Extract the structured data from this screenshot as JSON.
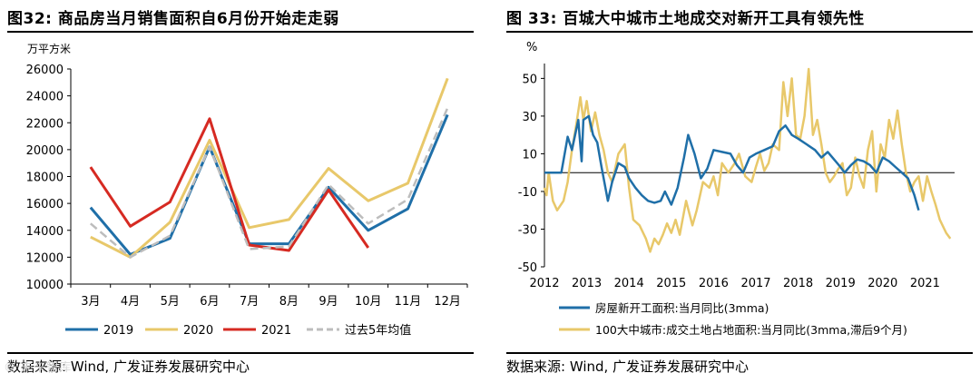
{
  "left": {
    "title": "图32:  商品房当月销售面积自6月份开始走走弱",
    "source": "数据来源: Wind, 广发证券发展研究中心"
  },
  "right": {
    "title": "图 33:  百城大中城市土地成交对新开工具有领先性",
    "source": "数据来源: Wind, 广发证券发展研究中心"
  },
  "watermark": "© 未来智库",
  "colors": {
    "blue": "#1f6fa8",
    "gold": "#e8c86a",
    "red": "#d62a22",
    "grey": "#bdbdbd",
    "axis": "#000000"
  },
  "chart_data": [
    {
      "type": "line",
      "ylabel": "万平方米",
      "ylim": [
        10000,
        26000
      ],
      "yticks": [
        10000,
        12000,
        14000,
        16000,
        18000,
        20000,
        22000,
        24000,
        26000
      ],
      "yticklabels": [
        "10000",
        "12000",
        "14000",
        "16000",
        "18000",
        "20000",
        "22000",
        "24000",
        "26000"
      ],
      "categories": [
        "3月",
        "4月",
        "5月",
        "6月",
        "7月",
        "8月",
        "9月",
        "10月",
        "11月",
        "12月"
      ],
      "series": [
        {
          "name": "2019",
          "color": "blue",
          "dash": false,
          "values": [
            15700,
            12200,
            13400,
            20200,
            13000,
            13000,
            17200,
            14000,
            15600,
            22600
          ]
        },
        {
          "name": "2020",
          "color": "gold",
          "dash": false,
          "values": [
            13500,
            12000,
            14600,
            20700,
            14200,
            14800,
            18600,
            16200,
            17500,
            25300
          ]
        },
        {
          "name": "2021",
          "color": "red",
          "dash": false,
          "values": [
            18700,
            14300,
            16100,
            22300,
            12900,
            12500,
            17000,
            12700,
            null,
            null
          ]
        },
        {
          "name": "过去5年均值",
          "color": "grey",
          "dash": true,
          "values": [
            14500,
            12000,
            13600,
            20200,
            12600,
            12800,
            17400,
            14500,
            16300,
            23100
          ]
        }
      ],
      "legend": [
        "2019",
        "2020",
        "2021",
        "过去5年均值"
      ],
      "legend_placement": "bottom"
    },
    {
      "type": "line",
      "ylabel": "%",
      "ylim": [
        -50,
        55
      ],
      "yticks": [
        -50,
        -30,
        -10,
        10,
        30,
        50
      ],
      "yticklabels": [
        "-50",
        "-30",
        "-10",
        "10",
        "30",
        "50"
      ],
      "xlim": [
        2012,
        2021.7
      ],
      "xticks": [
        2012,
        2013,
        2014,
        2015,
        2016,
        2017,
        2018,
        2019,
        2020,
        2021
      ],
      "xticklabels": [
        "2012",
        "2013",
        "2014",
        "2015",
        "2016",
        "2017",
        "2018",
        "2019",
        "2020",
        "2021"
      ],
      "zero_line": true,
      "series": [
        {
          "name": "房屋新开工面积:当月同比(3mma)",
          "color": "blue",
          "points": [
            [
              2012.0,
              0
            ],
            [
              2012.2,
              0
            ],
            [
              2012.4,
              0
            ],
            [
              2012.55,
              19
            ],
            [
              2012.65,
              12
            ],
            [
              2012.8,
              28
            ],
            [
              2012.88,
              6
            ],
            [
              2012.92,
              28
            ],
            [
              2013.05,
              30
            ],
            [
              2013.15,
              20
            ],
            [
              2013.25,
              16
            ],
            [
              2013.35,
              3
            ],
            [
              2013.5,
              -15
            ],
            [
              2013.6,
              -5
            ],
            [
              2013.75,
              5
            ],
            [
              2013.9,
              3
            ],
            [
              2014.0,
              -3
            ],
            [
              2014.15,
              -8
            ],
            [
              2014.3,
              -12
            ],
            [
              2014.45,
              -15
            ],
            [
              2014.6,
              -16
            ],
            [
              2014.75,
              -15
            ],
            [
              2014.85,
              -10
            ],
            [
              2015.0,
              -17
            ],
            [
              2015.15,
              -8
            ],
            [
              2015.3,
              8
            ],
            [
              2015.4,
              20
            ],
            [
              2015.55,
              10
            ],
            [
              2015.7,
              -3
            ],
            [
              2015.85,
              2
            ],
            [
              2016.0,
              12
            ],
            [
              2016.2,
              11
            ],
            [
              2016.4,
              10
            ],
            [
              2016.55,
              4
            ],
            [
              2016.7,
              0
            ],
            [
              2016.85,
              8
            ],
            [
              2017.0,
              10
            ],
            [
              2017.2,
              12
            ],
            [
              2017.4,
              14
            ],
            [
              2017.55,
              22
            ],
            [
              2017.7,
              25
            ],
            [
              2017.85,
              20
            ],
            [
              2018.0,
              18
            ],
            [
              2018.2,
              15
            ],
            [
              2018.4,
              12
            ],
            [
              2018.55,
              8
            ],
            [
              2018.7,
              11
            ],
            [
              2018.85,
              7
            ],
            [
              2019.0,
              3
            ],
            [
              2019.1,
              0
            ],
            [
              2019.25,
              4
            ],
            [
              2019.4,
              7
            ],
            [
              2019.55,
              6
            ],
            [
              2019.7,
              4
            ],
            [
              2019.85,
              0
            ],
            [
              2020.0,
              8
            ],
            [
              2020.15,
              6
            ],
            [
              2020.3,
              3
            ],
            [
              2020.45,
              0
            ],
            [
              2020.6,
              -3
            ],
            [
              2020.75,
              -12
            ],
            [
              2020.85,
              -20
            ]
          ]
        },
        {
          "name": "100大中城市:成交土地占地面积:当月同比(3mma,滞后9个月)",
          "color": "gold",
          "points": [
            [
              2012.0,
              -8
            ],
            [
              2012.05,
              -12
            ],
            [
              2012.1,
              0
            ],
            [
              2012.2,
              -15
            ],
            [
              2012.3,
              -20
            ],
            [
              2012.45,
              -15
            ],
            [
              2012.55,
              -5
            ],
            [
              2012.65,
              12
            ],
            [
              2012.75,
              25
            ],
            [
              2012.85,
              40
            ],
            [
              2012.92,
              28
            ],
            [
              2013.0,
              38
            ],
            [
              2013.1,
              22
            ],
            [
              2013.2,
              32
            ],
            [
              2013.3,
              20
            ],
            [
              2013.4,
              12
            ],
            [
              2013.5,
              0
            ],
            [
              2013.6,
              -5
            ],
            [
              2013.75,
              10
            ],
            [
              2013.9,
              15
            ],
            [
              2014.0,
              -8
            ],
            [
              2014.1,
              -25
            ],
            [
              2014.25,
              -28
            ],
            [
              2014.4,
              -35
            ],
            [
              2014.5,
              -42
            ],
            [
              2014.6,
              -35
            ],
            [
              2014.7,
              -38
            ],
            [
              2014.8,
              -33
            ],
            [
              2014.9,
              -27
            ],
            [
              2015.0,
              -32
            ],
            [
              2015.1,
              -25
            ],
            [
              2015.2,
              -33
            ],
            [
              2015.35,
              -15
            ],
            [
              2015.5,
              -28
            ],
            [
              2015.6,
              -20
            ],
            [
              2015.75,
              -5
            ],
            [
              2015.9,
              -8
            ],
            [
              2016.0,
              -2
            ],
            [
              2016.1,
              -12
            ],
            [
              2016.2,
              5
            ],
            [
              2016.35,
              0
            ],
            [
              2016.5,
              5
            ],
            [
              2016.6,
              10
            ],
            [
              2016.75,
              -2
            ],
            [
              2016.9,
              -5
            ],
            [
              2017.0,
              3
            ],
            [
              2017.1,
              10
            ],
            [
              2017.2,
              1
            ],
            [
              2017.3,
              5
            ],
            [
              2017.4,
              15
            ],
            [
              2017.55,
              12
            ],
            [
              2017.65,
              48
            ],
            [
              2017.75,
              30
            ],
            [
              2017.85,
              50
            ],
            [
              2017.95,
              20
            ],
            [
              2018.05,
              18
            ],
            [
              2018.15,
              30
            ],
            [
              2018.25,
              55
            ],
            [
              2018.35,
              20
            ],
            [
              2018.45,
              28
            ],
            [
              2018.55,
              15
            ],
            [
              2018.65,
              0
            ],
            [
              2018.75,
              -5
            ],
            [
              2018.85,
              -2
            ],
            [
              2018.95,
              2
            ],
            [
              2019.05,
              5
            ],
            [
              2019.15,
              -12
            ],
            [
              2019.25,
              -8
            ],
            [
              2019.35,
              8
            ],
            [
              2019.45,
              -2
            ],
            [
              2019.55,
              -8
            ],
            [
              2019.65,
              12
            ],
            [
              2019.75,
              22
            ],
            [
              2019.85,
              -10
            ],
            [
              2019.95,
              15
            ],
            [
              2020.05,
              8
            ],
            [
              2020.15,
              28
            ],
            [
              2020.25,
              18
            ],
            [
              2020.35,
              33
            ],
            [
              2020.45,
              15
            ],
            [
              2020.55,
              0
            ],
            [
              2020.65,
              -10
            ],
            [
              2020.75,
              -5
            ],
            [
              2020.85,
              -2
            ],
            [
              2020.95,
              -15
            ],
            [
              2021.05,
              -2
            ],
            [
              2021.15,
              -10
            ],
            [
              2021.25,
              -17
            ],
            [
              2021.35,
              -25
            ],
            [
              2021.5,
              -32
            ],
            [
              2021.6,
              -35
            ]
          ]
        }
      ],
      "legend": [
        "房屋新开工面积:当月同比(3mma)",
        "100大中城市:成交土地占地面积:当月同比(3mma,滞后9个月)"
      ],
      "legend_placement": "bottom"
    }
  ]
}
